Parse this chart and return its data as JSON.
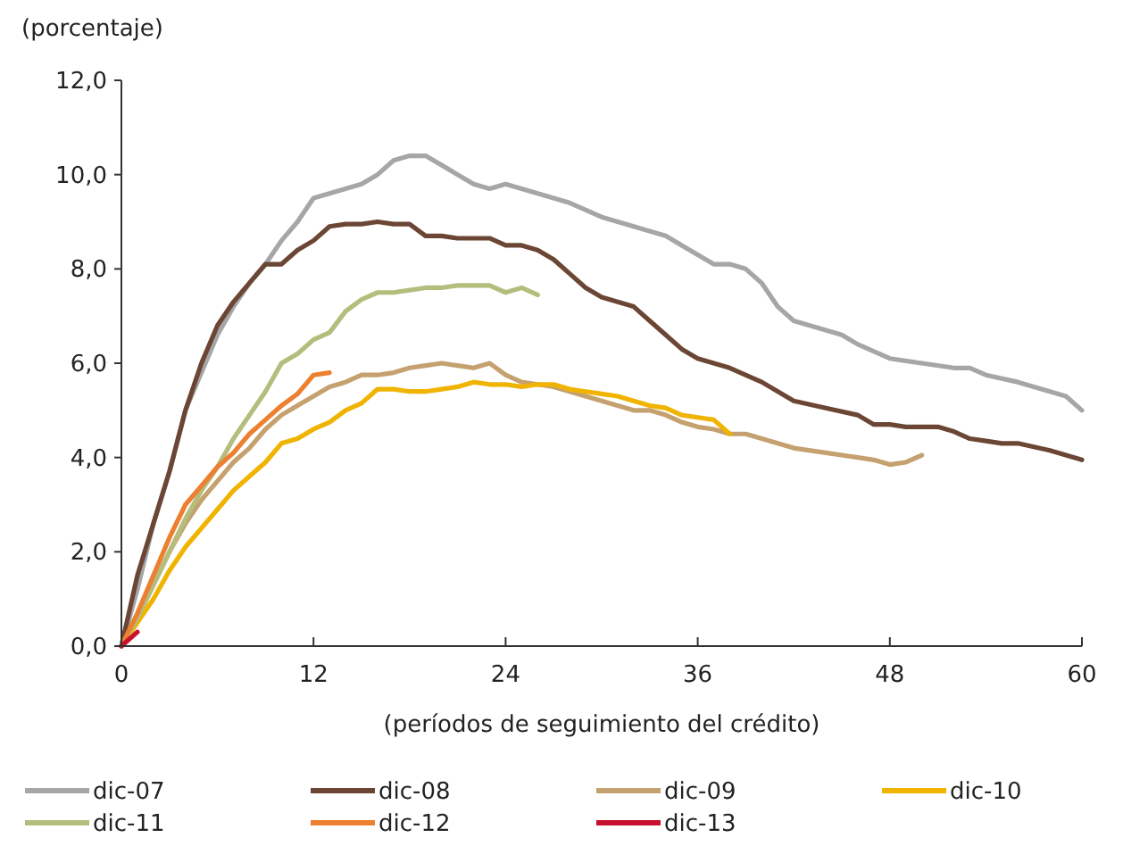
{
  "chart_data": {
    "type": "line",
    "ylabel": "(porcentaje)",
    "xlabel": "(períodos de seguimiento del crédito)",
    "xlim": [
      0,
      60
    ],
    "xticks": [
      0,
      12,
      24,
      36,
      48,
      60
    ],
    "ylim": [
      0,
      12
    ],
    "yticks": [
      {
        "value": 0,
        "label": "0,0"
      },
      {
        "value": 2,
        "label": "2,0"
      },
      {
        "value": 4,
        "label": "4,0"
      },
      {
        "value": 6,
        "label": "6,0"
      },
      {
        "value": 8,
        "label": "8,0"
      },
      {
        "value": 10,
        "label": "10,0"
      },
      {
        "value": 12,
        "label": "12,0"
      }
    ],
    "grid": false,
    "legend": "bottom",
    "line_style": "solid",
    "marker": "none",
    "series": [
      {
        "name": "dic-07",
        "color": "#a6a6a8",
        "x": [
          0,
          1,
          2,
          3,
          4,
          5,
          6,
          7,
          8,
          9,
          10,
          11,
          12,
          13,
          14,
          15,
          16,
          17,
          18,
          19,
          20,
          21,
          22,
          23,
          24,
          25,
          26,
          28,
          30,
          32,
          34,
          36,
          37,
          38,
          39,
          40,
          41,
          42,
          44,
          45,
          46,
          48,
          50,
          52,
          53,
          54,
          56,
          58,
          59,
          60
        ],
        "values": [
          0,
          1.2,
          2.6,
          3.7,
          5.0,
          5.8,
          6.6,
          7.2,
          7.7,
          8.1,
          8.6,
          9.0,
          9.5,
          9.6,
          9.7,
          9.8,
          10.0,
          10.3,
          10.4,
          10.4,
          10.2,
          10.0,
          9.8,
          9.7,
          9.8,
          9.7,
          9.6,
          9.4,
          9.1,
          8.9,
          8.7,
          8.3,
          8.1,
          8.1,
          8.0,
          7.7,
          7.2,
          6.9,
          6.7,
          6.6,
          6.4,
          6.1,
          6.0,
          5.9,
          5.9,
          5.75,
          5.6,
          5.4,
          5.3,
          5.0
        ]
      },
      {
        "name": "dic-08",
        "color": "#6b4634",
        "x": [
          0,
          1,
          2,
          3,
          4,
          5,
          6,
          7,
          8,
          9,
          10,
          11,
          12,
          13,
          14,
          15,
          16,
          17,
          18,
          19,
          20,
          21,
          22,
          23,
          24,
          25,
          26,
          27,
          28,
          29,
          30,
          31,
          32,
          33,
          34,
          35,
          36,
          37,
          38,
          40,
          42,
          44,
          46,
          47,
          48,
          49,
          50,
          51,
          52,
          53,
          54,
          55,
          56,
          58,
          59,
          60
        ],
        "values": [
          0,
          1.5,
          2.6,
          3.7,
          5.0,
          6.0,
          6.8,
          7.3,
          7.7,
          8.1,
          8.1,
          8.4,
          8.6,
          8.9,
          8.95,
          8.95,
          9.0,
          8.95,
          8.95,
          8.7,
          8.7,
          8.65,
          8.65,
          8.65,
          8.5,
          8.5,
          8.4,
          8.2,
          7.9,
          7.6,
          7.4,
          7.3,
          7.2,
          6.9,
          6.6,
          6.3,
          6.1,
          6.0,
          5.9,
          5.6,
          5.2,
          5.05,
          4.9,
          4.7,
          4.7,
          4.65,
          4.65,
          4.65,
          4.55,
          4.4,
          4.35,
          4.3,
          4.3,
          4.15,
          4.05,
          3.95
        ]
      },
      {
        "name": "dic-09",
        "color": "#c4a16f",
        "x": [
          0,
          1,
          2,
          3,
          4,
          5,
          6,
          7,
          8,
          9,
          10,
          11,
          12,
          13,
          14,
          15,
          16,
          17,
          18,
          19,
          20,
          21,
          22,
          23,
          24,
          25,
          26,
          27,
          28,
          29,
          30,
          31,
          32,
          33,
          34,
          35,
          36,
          37,
          38,
          39,
          40,
          41,
          42,
          44,
          45,
          46,
          47,
          48,
          49,
          50
        ],
        "values": [
          0,
          0.6,
          1.3,
          2.0,
          2.6,
          3.1,
          3.5,
          3.9,
          4.2,
          4.6,
          4.9,
          5.1,
          5.3,
          5.5,
          5.6,
          5.75,
          5.75,
          5.8,
          5.9,
          5.95,
          6.0,
          5.95,
          5.9,
          6.0,
          5.75,
          5.6,
          5.55,
          5.5,
          5.4,
          5.3,
          5.2,
          5.1,
          5.0,
          5.0,
          4.9,
          4.75,
          4.65,
          4.6,
          4.5,
          4.5,
          4.4,
          4.3,
          4.2,
          4.1,
          4.05,
          4.0,
          3.95,
          3.85,
          3.9,
          4.05
        ]
      },
      {
        "name": "dic-10",
        "color": "#f0b400",
        "x": [
          0,
          1,
          2,
          3,
          4,
          5,
          6,
          7,
          8,
          9,
          10,
          11,
          12,
          13,
          14,
          15,
          16,
          17,
          18,
          19,
          20,
          21,
          22,
          23,
          24,
          25,
          26,
          27,
          28,
          29,
          30,
          31,
          32,
          33,
          34,
          35,
          36,
          37,
          38
        ],
        "values": [
          0,
          0.5,
          1.0,
          1.6,
          2.1,
          2.5,
          2.9,
          3.3,
          3.6,
          3.9,
          4.3,
          4.4,
          4.6,
          4.75,
          5.0,
          5.15,
          5.45,
          5.45,
          5.4,
          5.4,
          5.45,
          5.5,
          5.6,
          5.55,
          5.55,
          5.5,
          5.55,
          5.55,
          5.45,
          5.4,
          5.35,
          5.3,
          5.2,
          5.1,
          5.05,
          4.9,
          4.85,
          4.8,
          4.5
        ]
      },
      {
        "name": "dic-11",
        "color": "#b5bd7d",
        "x": [
          0,
          1,
          2,
          3,
          4,
          5,
          6,
          7,
          8,
          9,
          10,
          11,
          12,
          13,
          14,
          15,
          16,
          17,
          18,
          19,
          20,
          21,
          22,
          23,
          24,
          25,
          26
        ],
        "values": [
          0,
          0.6,
          1.3,
          2.0,
          2.7,
          3.3,
          3.8,
          4.4,
          4.9,
          5.4,
          6.0,
          6.2,
          6.5,
          6.65,
          7.1,
          7.35,
          7.5,
          7.5,
          7.55,
          7.6,
          7.6,
          7.65,
          7.65,
          7.65,
          7.5,
          7.6,
          7.45
        ]
      },
      {
        "name": "dic-12",
        "color": "#ec8030",
        "x": [
          0,
          1,
          2,
          3,
          4,
          5,
          6,
          7,
          8,
          9,
          10,
          11,
          12,
          13
        ],
        "values": [
          0,
          0.7,
          1.5,
          2.3,
          3.0,
          3.4,
          3.8,
          4.1,
          4.5,
          4.8,
          5.1,
          5.35,
          5.75,
          5.8
        ]
      },
      {
        "name": "dic-13",
        "color": "#c8102e",
        "x": [
          0,
          1
        ],
        "values": [
          0,
          0.3
        ]
      }
    ]
  }
}
